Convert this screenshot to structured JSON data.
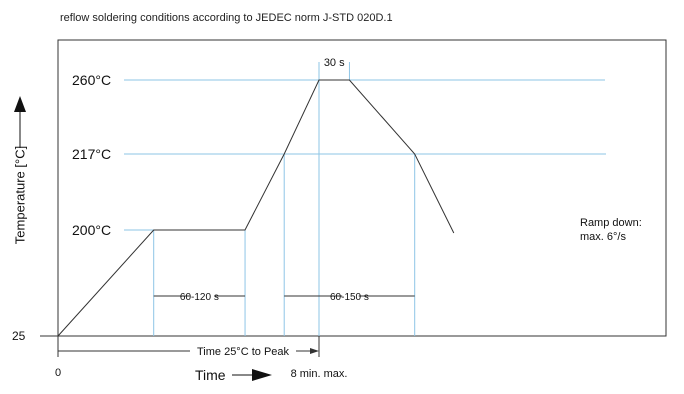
{
  "chart_data": {
    "type": "line",
    "title": "reflow soldering conditions according to JEDEC norm J-STD 020D.1",
    "ylabel": "Temperature [°C]",
    "xlabel": "Time",
    "x_start_label": "0",
    "x_end_label": "8 min. max.",
    "series": [
      {
        "values": [
          {
            "x": 0.0,
            "y": 25
          },
          {
            "x": 2.2,
            "y": 200
          },
          {
            "x": 4.3,
            "y": 200
          },
          {
            "x": 5.2,
            "y": 217
          },
          {
            "x": 6.0,
            "y": 260
          },
          {
            "x": 6.7,
            "y": 260
          },
          {
            "x": 8.2,
            "y": 217
          },
          {
            "x": 9.1,
            "y": 195
          }
        ]
      }
    ],
    "y_levels": [
      {
        "value": 260,
        "label": "260°C"
      },
      {
        "value": 217,
        "label": "217°C"
      },
      {
        "value": 200,
        "label": "200°C"
      },
      {
        "value": 25,
        "label": "25"
      }
    ],
    "annotations": {
      "plateau": "30 s",
      "preheat": "60-120 s",
      "above_liquidus": "60-150 s",
      "ramp_down": [
        "Ramp down:",
        "max. 6°/s"
      ],
      "time_to_peak": "Time 25°C to Peak"
    },
    "colors": {
      "profile": "#333333",
      "guide": "#8ec5e6",
      "frame": "#333333",
      "text": "#111111"
    },
    "grid": false
  }
}
